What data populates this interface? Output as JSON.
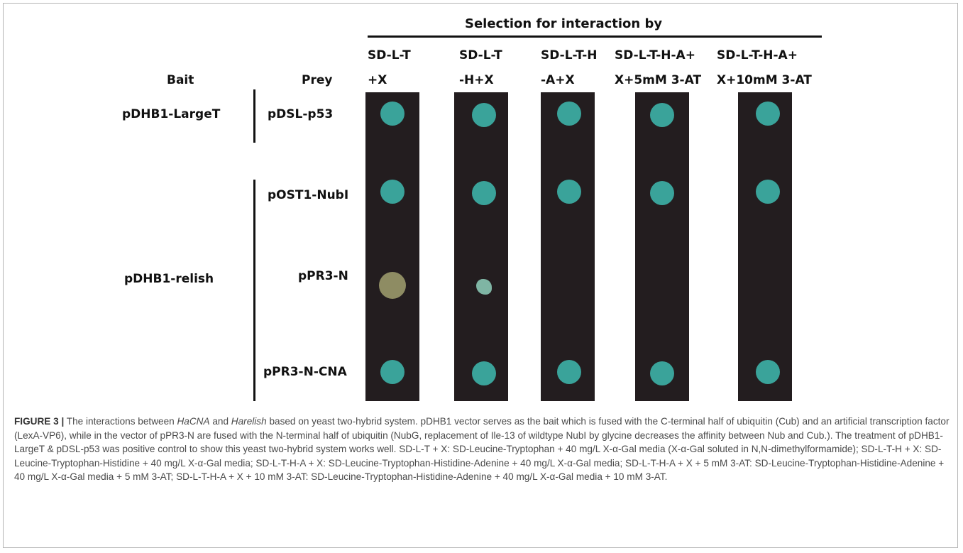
{
  "figure": {
    "selection_title": "Selection for interaction by",
    "columns": [
      {
        "line1": "SD-L-T",
        "line2": "+X"
      },
      {
        "line1": "SD-L-T",
        "line2": "-H+X"
      },
      {
        "line1": "SD-L-T-H",
        "line2": "-A+X"
      },
      {
        "line1": "SD-L-T-H-A+",
        "line2": "X+5mM 3-AT"
      },
      {
        "line1": "SD-L-T-H-A+",
        "line2": "X+10mM 3-AT"
      }
    ],
    "bait_header": "Bait",
    "prey_header": "Prey",
    "baits": [
      "pDHB1-LargeT",
      "pDHB1-relish"
    ],
    "preys": [
      "pDSL-p53",
      "pOST1-NubI",
      "pPR3-N",
      "pPR3-N-CNA"
    ],
    "colors": {
      "strip": "#231d1f",
      "blue_colony": "#3aa39a",
      "negative_colony": "#8e8c63",
      "faint_colony": "#7fb5a4"
    },
    "growth": [
      [
        "blue",
        "blue",
        "blue",
        "blue",
        "blue"
      ],
      [
        "blue",
        "blue",
        "blue",
        "blue",
        "blue"
      ],
      [
        "negative",
        "faint",
        "none",
        "none",
        "none"
      ],
      [
        "blue",
        "blue",
        "blue",
        "blue",
        "blue"
      ]
    ]
  },
  "caption": {
    "label": "FIGURE 3 |",
    "p1": " The interactions between ",
    "i1": "HaCNA",
    "p2": " and ",
    "i2": "Harelish",
    "p3": " based on yeast two-hybrid system. pDHB1 vector serves as the bait which is fused with the C-terminal half of ubiquitin (Cub) and an artificial transcription factor (LexA-VP6), while in the vector of pPR3-N are fused with the N-terminal half of ubiquitin (NubG, replacement of Ile-13 of wildtype NubI by glycine decreases the affinity between Nub and Cub.). The treatment of pDHB1-LargeT & pDSL-p53 was positive control to show this yeast two-hybrid system works well. SD-L-T + X: SD-Leucine-Tryptophan + 40 mg/L X-α-Gal media (X-α-Gal soluted in N,N-dimethylformamide); SD-L-T-H + X: SD-Leucine-Tryptophan-Histidine + 40 mg/L X-α-Gal media; SD-L-T-H-A + X: SD-Leucine-Tryptophan-Histidine-Adenine + 40 mg/L X-α-Gal media; SD-L-T-H-A + X + 5 mM 3-AT: SD-Leucine-Tryptophan-Histidine-Adenine + 40 mg/L X-α-Gal media + 5 mM 3-AT; SD-L-T-H-A + X + 10 mM 3-AT: SD-Leucine-Tryptophan-Histidine-Adenine + 40 mg/L X-α-Gal media + 10 mM 3-AT."
  }
}
